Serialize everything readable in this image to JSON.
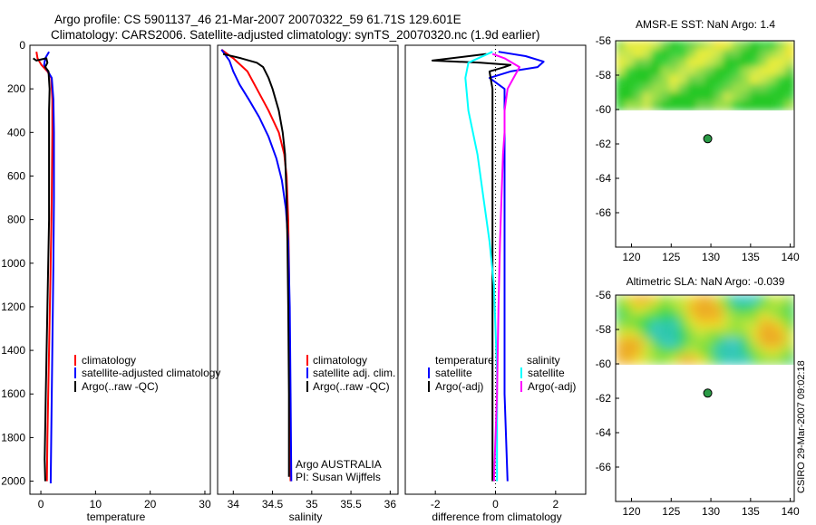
{
  "header": {
    "line1": "Argo profile: CS 5901137_46 21-Mar-2007 20070322_59 61.71S 129.601E",
    "line2": "Climatology: CARS2006. Satellite-adjusted climatology: synTS_20070320.nc (1.9d earlier)"
  },
  "side_label": "CSIRO 29-Mar-2007 09:02:18",
  "colors": {
    "red": "#ff0000",
    "blue": "#0000ff",
    "black": "#000000",
    "cyan": "#00ffff",
    "magenta": "#ff00ff"
  },
  "chart_data": [
    {
      "type": "line",
      "id": "temperature",
      "xlabel": "temperature",
      "xlim": [
        -2,
        31
      ],
      "ylim": [
        2060,
        0
      ],
      "xticks": [
        0,
        10,
        20,
        30
      ],
      "yticks": [
        0,
        200,
        400,
        600,
        800,
        1000,
        1200,
        1400,
        1600,
        1800,
        2000
      ],
      "legend": [
        {
          "label": "climatology",
          "color": "#ff0000"
        },
        {
          "label": "satellite-adjusted climatology",
          "color": "#0000ff"
        },
        {
          "label": "Argo(..raw -QC)",
          "color": "#000000"
        }
      ],
      "series": [
        {
          "name": "climatology",
          "color": "#ff0000",
          "points": [
            [
              -0.8,
              30
            ],
            [
              -0.6,
              60
            ],
            [
              0.1,
              90
            ],
            [
              1.2,
              120
            ],
            [
              1.9,
              150
            ],
            [
              2.1,
              250
            ],
            [
              2.1,
              400
            ],
            [
              2.0,
              700
            ],
            [
              1.8,
              1000
            ],
            [
              1.5,
              1400
            ],
            [
              1.2,
              1800
            ],
            [
              1.1,
              2000
            ]
          ]
        },
        {
          "name": "satellite-adjusted climatology",
          "color": "#0000ff",
          "points": [
            [
              1.5,
              30
            ],
            [
              0.8,
              60
            ],
            [
              0.6,
              90
            ],
            [
              1.3,
              120
            ],
            [
              2.0,
              150
            ],
            [
              2.3,
              250
            ],
            [
              2.4,
              400
            ],
            [
              2.4,
              700
            ],
            [
              2.3,
              1000
            ],
            [
              2.1,
              1400
            ],
            [
              1.9,
              1800
            ],
            [
              1.8,
              2010
            ]
          ]
        },
        {
          "name": "Argo(..raw -QC)",
          "color": "#000000",
          "points": [
            [
              -1.4,
              60
            ],
            [
              -0.8,
              70
            ],
            [
              1.0,
              60
            ],
            [
              1.2,
              80
            ],
            [
              0.8,
              100
            ],
            [
              1.4,
              120
            ],
            [
              1.6,
              200
            ],
            [
              1.5,
              300
            ],
            [
              1.5,
              500
            ],
            [
              1.5,
              800
            ],
            [
              1.2,
              1200
            ],
            [
              0.9,
              1600
            ],
            [
              0.7,
              1900
            ],
            [
              0.8,
              2000
            ]
          ]
        }
      ]
    },
    {
      "type": "line",
      "id": "salinity",
      "xlabel": "salinity",
      "xlim": [
        33.8,
        36.1
      ],
      "ylim": [
        2060,
        0
      ],
      "xticks": [
        34,
        34.5,
        35,
        35.5,
        36
      ],
      "xtick_labels": [
        "34",
        "34.5",
        "35",
        "35.5",
        "36"
      ],
      "legend": [
        {
          "label": "climatology",
          "color": "#ff0000"
        },
        {
          "label": "satellite adj. clim.",
          "color": "#0000ff"
        },
        {
          "label": "Argo(..raw -QC)",
          "color": "#000000"
        }
      ],
      "annotations": [
        "Argo AUSTRALIA",
        "PI: Susan Wijffels"
      ],
      "series": [
        {
          "name": "climatology",
          "color": "#ff0000",
          "points": [
            [
              33.85,
              20
            ],
            [
              34.0,
              60
            ],
            [
              34.18,
              120
            ],
            [
              34.3,
              200
            ],
            [
              34.45,
              300
            ],
            [
              34.58,
              400
            ],
            [
              34.65,
              500
            ],
            [
              34.68,
              600
            ],
            [
              34.7,
              800
            ],
            [
              34.71,
              1000
            ],
            [
              34.72,
              1500
            ],
            [
              34.73,
              2000
            ]
          ]
        },
        {
          "name": "satellite adj. clim.",
          "color": "#0000ff",
          "points": [
            [
              33.85,
              20
            ],
            [
              33.95,
              70
            ],
            [
              34.0,
              120
            ],
            [
              34.08,
              180
            ],
            [
              34.2,
              250
            ],
            [
              34.33,
              330
            ],
            [
              34.45,
              420
            ],
            [
              34.55,
              520
            ],
            [
              34.62,
              620
            ],
            [
              34.67,
              750
            ],
            [
              34.7,
              900
            ],
            [
              34.72,
              1200
            ],
            [
              34.73,
              1600
            ],
            [
              34.74,
              2000
            ]
          ]
        },
        {
          "name": "Argo(..raw -QC)",
          "color": "#000000",
          "points": [
            [
              33.87,
              40
            ],
            [
              34.1,
              60
            ],
            [
              34.3,
              80
            ],
            [
              34.38,
              100
            ],
            [
              34.45,
              150
            ],
            [
              34.5,
              200
            ],
            [
              34.58,
              300
            ],
            [
              34.63,
              400
            ],
            [
              34.66,
              500
            ],
            [
              34.68,
              700
            ],
            [
              34.69,
              900
            ],
            [
              34.7,
              1200
            ],
            [
              34.71,
              1600
            ],
            [
              34.71,
              1980
            ]
          ]
        }
      ]
    },
    {
      "type": "line",
      "id": "difference",
      "xlabel": "difference from climatology",
      "xlim": [
        -3,
        3
      ],
      "ylim": [
        2060,
        0
      ],
      "xticks": [
        -2,
        0,
        2
      ],
      "legend_temperature_title": "temperature",
      "legend_salinity_title": "salinity",
      "legend": [
        {
          "label": "satellite",
          "color": "#0000ff"
        },
        {
          "label": "Argo(-adj)",
          "color": "#000000"
        },
        {
          "label": "satellite",
          "color": "#00ffff"
        },
        {
          "label": "Argo(-adj)",
          "color": "#ff00ff"
        }
      ],
      "series": [
        {
          "name": "temperature satellite",
          "color": "#0000ff",
          "points": [
            [
              0.1,
              30
            ],
            [
              1.0,
              50
            ],
            [
              1.6,
              75
            ],
            [
              1.4,
              100
            ],
            [
              0.5,
              120
            ],
            [
              -0.2,
              150
            ],
            [
              0.3,
              200
            ],
            [
              0.3,
              400
            ],
            [
              0.3,
              800
            ],
            [
              0.3,
              1200
            ],
            [
              0.3,
              1600
            ],
            [
              0.4,
              2000
            ]
          ]
        },
        {
          "name": "temperature Argo(-adj)",
          "color": "#000000",
          "points": [
            [
              -0.3,
              40
            ],
            [
              -2.1,
              70
            ],
            [
              -0.5,
              80
            ],
            [
              0.5,
              90
            ],
            [
              0.3,
              100
            ],
            [
              -0.2,
              120
            ],
            [
              -0.1,
              200
            ],
            [
              -0.1,
              400
            ],
            [
              -0.1,
              800
            ],
            [
              -0.1,
              1200
            ],
            [
              -0.1,
              1600
            ],
            [
              -0.1,
              2000
            ]
          ]
        },
        {
          "name": "salinity satellite",
          "color": "#00ffff",
          "points": [
            [
              -0.1,
              30
            ],
            [
              -0.9,
              80
            ],
            [
              -1.0,
              150
            ],
            [
              -0.9,
              300
            ],
            [
              -0.6,
              500
            ],
            [
              -0.4,
              700
            ],
            [
              -0.2,
              900
            ],
            [
              -0.05,
              1100
            ],
            [
              0.05,
              1500
            ],
            [
              0.05,
              2000
            ]
          ]
        },
        {
          "name": "salinity Argo(-adj)",
          "color": "#ff00ff",
          "points": [
            [
              -0.1,
              40
            ],
            [
              0.3,
              60
            ],
            [
              0.8,
              100
            ],
            [
              0.6,
              150
            ],
            [
              0.4,
              200
            ],
            [
              0.3,
              300
            ],
            [
              0.3,
              400
            ],
            [
              0.25,
              500
            ],
            [
              0.2,
              700
            ],
            [
              0.15,
              900
            ],
            [
              0.1,
              1200
            ],
            [
              0.05,
              1600
            ],
            [
              -0.05,
              2000
            ]
          ]
        }
      ]
    },
    {
      "type": "heatmap",
      "id": "sst",
      "title": "AMSR-E SST: NaN Argo: 1.4",
      "xlim": [
        118,
        140.5
      ],
      "ylim": [
        -56,
        -68
      ],
      "xticks": [
        120,
        125,
        130,
        135,
        140
      ],
      "yticks": [
        -56,
        -58,
        -60,
        -62,
        -64,
        -66
      ],
      "data_extent_lat": [
        -56,
        -60
      ],
      "marker": {
        "lon": 129.6,
        "lat": -61.7
      }
    },
    {
      "type": "heatmap",
      "id": "sla",
      "title": "Altimetric SLA: NaN Argo: -0.039",
      "xlim": [
        118,
        140.5
      ],
      "ylim": [
        -56,
        -68
      ],
      "xticks": [
        120,
        125,
        130,
        135,
        140
      ],
      "yticks": [
        -56,
        -58,
        -60,
        -62,
        -64,
        -66
      ],
      "data_extent_lat": [
        -56,
        -60
      ],
      "marker": {
        "lon": 129.6,
        "lat": -61.7
      }
    }
  ]
}
